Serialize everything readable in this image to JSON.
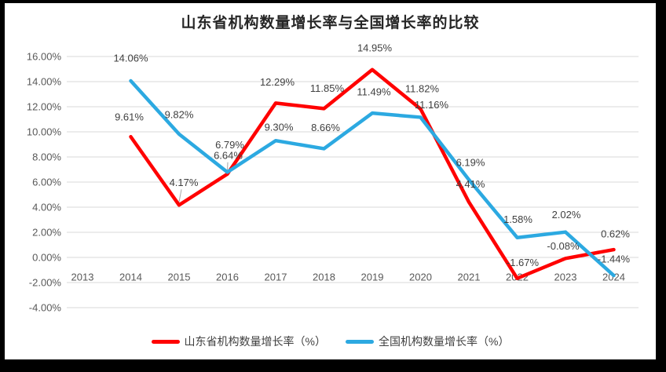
{
  "palette": {
    "frame": "#000000",
    "canvas": "#FFFFFF",
    "grid": "#D9D9D9",
    "axis_text": "#595959",
    "data_label": "#404040",
    "leader": "#A6A6A6",
    "title_text": "#262626",
    "legend_text": "#404040"
  },
  "chart_data": {
    "type": "line",
    "title": "山东省机构数量增长率与全国增长率的比较",
    "categories": [
      "2013",
      "2014",
      "2015",
      "2016",
      "2017",
      "2018",
      "2019",
      "2020",
      "2021",
      "2022",
      "2023",
      "2024"
    ],
    "series": [
      {
        "name": "山东省机构数量增长率（%）",
        "color": "#FF0000",
        "values": [
          null,
          9.61,
          4.17,
          6.64,
          12.29,
          11.85,
          14.95,
          11.82,
          4.41,
          -1.67,
          -0.08,
          0.62
        ],
        "labels": [
          null,
          "9.61%",
          "4.17%",
          "6.64%",
          "12.29%",
          "11.85%",
          "14.95%",
          "11.82%",
          "4.41%",
          "-1.67%",
          "-0.08%",
          "0.62%"
        ],
        "label_offsets": [
          null,
          [
            -2,
            -25
          ],
          [
            6,
            -29
          ],
          [
            1,
            -24
          ],
          [
            2,
            -27
          ],
          [
            4,
            -26
          ],
          [
            3,
            -28
          ],
          [
            2,
            -26
          ],
          [
            2,
            -23
          ],
          [
            7,
            -20
          ],
          [
            -3,
            -16
          ],
          [
            2,
            -20
          ]
        ],
        "leader_line_indices": [
          2,
          3
        ]
      },
      {
        "name": "全国机构数量增长率（%）",
        "color": "#2CA9E1",
        "values": [
          null,
          14.06,
          9.82,
          6.79,
          9.3,
          8.66,
          11.49,
          11.16,
          6.19,
          1.58,
          2.02,
          -1.44
        ],
        "labels": [
          null,
          "14.06%",
          "9.82%",
          "6.79%",
          "9.30%",
          "8.66%",
          "11.49%",
          "11.16%",
          "6.19%",
          "1.58%",
          "2.02%",
          "-1.44%"
        ],
        "label_offsets": [
          null,
          [
            0,
            -29
          ],
          [
            0,
            -25
          ],
          [
            3,
            -35
          ],
          [
            4,
            -17
          ],
          [
            2,
            -27
          ],
          [
            2,
            -27
          ],
          [
            14,
            -16
          ],
          [
            2,
            -22
          ],
          [
            1,
            -23
          ],
          [
            1,
            -22
          ],
          [
            0,
            -21
          ]
        ],
        "leader_line_indices": []
      }
    ],
    "y_axis": {
      "min": -4,
      "max": 16,
      "step": 2,
      "tick_labels": [
        "-4.00%",
        "-2.00%",
        "0.00%",
        "2.00%",
        "4.00%",
        "6.00%",
        "8.00%",
        "10.00%",
        "12.00%",
        "14.00%",
        "16.00%"
      ]
    },
    "grid": true,
    "legend_position": "bottom"
  }
}
